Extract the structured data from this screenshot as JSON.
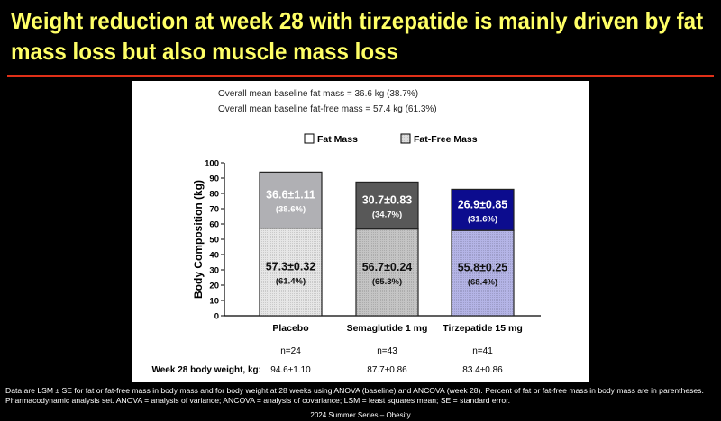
{
  "slide": {
    "title": "Weight reduction at week 28 with tirzepatide is mainly driven by fat mass loss but also muscle mass loss",
    "footnote": "Data are LSM ± SE for fat or fat-free mass in body mass and for body weight at 28 weeks using ANOVA (baseline) and ANCOVA (week 28). Percent of fat or fat-free mass in body mass are in parentheses. Pharmacodynamic analysis set. ANOVA = analysis of variance; ANCOVA = analysis of covariance; LSM = least squares mean; SE = standard error.",
    "series_label": "2024 Summer Series – Obesity"
  },
  "chart_data": {
    "type": "bar",
    "stacked": true,
    "annotations": [
      "Overall mean baseline fat mass = 36.6 kg (38.7%)",
      "Overall mean baseline fat-free mass = 57.4 kg (61.3%)"
    ],
    "legend": [
      "Fat Mass",
      "Fat-Free Mass"
    ],
    "legend_position": "top",
    "ylabel": "Body Composition (kg)",
    "ylim": [
      0,
      100
    ],
    "yticks": [
      "0",
      "10",
      "20",
      "30",
      "40",
      "50",
      "60",
      "70",
      "80",
      "90",
      "100"
    ],
    "categories": [
      "Placebo",
      "Semaglutide 1 mg",
      "Tirzepatide 15 mg"
    ],
    "series": [
      {
        "name": "Fat-Free Mass",
        "values": [
          57.3,
          56.7,
          55.8
        ],
        "labels": [
          "57.3±0.32",
          "56.7±0.24",
          "55.8±0.25"
        ],
        "pct": [
          "(61.4%)",
          "(65.3%)",
          "(68.4%)"
        ],
        "colors": [
          "#e6e6e6",
          "#c4c4c4",
          "#b4b4e6"
        ]
      },
      {
        "name": "Fat Mass",
        "values": [
          36.6,
          30.7,
          26.9
        ],
        "labels": [
          "36.6±1.11",
          "30.7±0.83",
          "26.9±0.85"
        ],
        "pct": [
          "(38.6%)",
          "(34.7%)",
          "(31.6%)"
        ],
        "colors": [
          "#b0b0b4",
          "#585858",
          "#0c0c8e"
        ]
      }
    ],
    "n": [
      "n=24",
      "n=43",
      "n=41"
    ],
    "week28_label": "Week 28 body weight, kg:",
    "week28_weight": [
      "94.6±1.10",
      "87.7±0.86",
      "83.4±0.86"
    ]
  }
}
